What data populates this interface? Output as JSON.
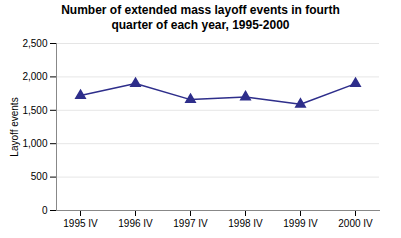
{
  "chart_data": {
    "type": "line",
    "title": "Number of extended mass layoff events in fourth\nquarter of each year, 1995-2000",
    "ylabel": "Layoff events",
    "categories": [
      "1995 IV",
      "1996 IV",
      "1997 IV",
      "1998 IV",
      "1999 IV",
      "2000 IV"
    ],
    "values": [
      1720,
      1900,
      1660,
      1700,
      1590,
      1900
    ],
    "color": "#2E2E8B",
    "marker": "triangle",
    "ylim": [
      0,
      2500
    ],
    "yticks": [
      0,
      500,
      {
        "value": 1000,
        "label": "1,000"
      },
      {
        "value": 1500,
        "label": "1,500"
      },
      {
        "value": 2000,
        "label": "2,000"
      },
      {
        "value": 2500,
        "label": "2,500"
      }
    ],
    "grid": true
  }
}
